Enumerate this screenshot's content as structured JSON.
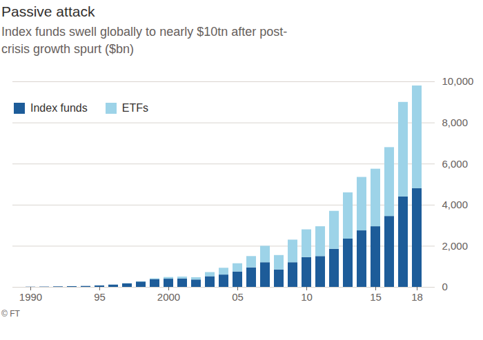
{
  "chart_data": {
    "type": "bar",
    "title": "Passive attack",
    "subtitle": "Index funds swell globally to nearly $10tn after post-crisis growth spurt ($bn)",
    "source": "© FT",
    "categories": [
      "1990",
      null,
      null,
      null,
      null,
      "95",
      null,
      null,
      null,
      null,
      "2000",
      null,
      null,
      null,
      null,
      "05",
      null,
      null,
      null,
      null,
      "10",
      null,
      null,
      null,
      null,
      "15",
      null,
      null,
      "18"
    ],
    "series": [
      {
        "name": "Index funds",
        "color": "#1d5c99",
        "values": [
          10,
          15,
          25,
          35,
          45,
          70,
          110,
          170,
          260,
          380,
          400,
          410,
          360,
          520,
          600,
          750,
          950,
          1200,
          850,
          1200,
          1450,
          1500,
          1850,
          2350,
          2750,
          2950,
          3450,
          4400,
          4800
        ]
      },
      {
        "name": "ETFs",
        "color": "#9dd3e8",
        "values": [
          0,
          0,
          0,
          2,
          3,
          5,
          5,
          10,
          15,
          40,
          80,
          90,
          110,
          200,
          330,
          400,
          550,
          800,
          700,
          1100,
          1350,
          1450,
          1850,
          2250,
          2600,
          2800,
          3350,
          4600,
          5000
        ]
      }
    ],
    "stacked": true,
    "ylim": [
      0,
      10000
    ],
    "yticks": [
      0,
      {
        "value": 2000,
        "label": "2,000"
      },
      {
        "value": 4000,
        "label": "4,000"
      },
      {
        "value": 6000,
        "label": "6,000"
      },
      {
        "value": 8000,
        "label": "8,000"
      },
      {
        "value": 10000,
        "label": "10,000"
      }
    ],
    "grid": true,
    "legend": "top-left"
  }
}
